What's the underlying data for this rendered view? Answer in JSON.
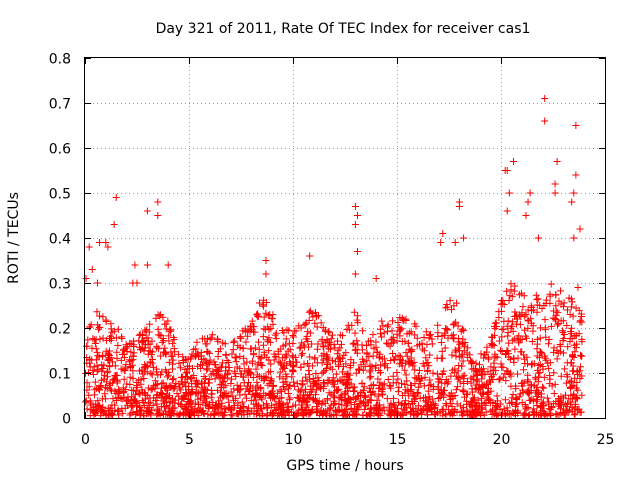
{
  "chart_data": {
    "type": "scatter",
    "title": "Day 321 of 2011, Rate Of TEC Index for receiver cas1",
    "xlabel": "GPS time / hours",
    "ylabel": "ROTI / TECUs",
    "xlim": [
      0,
      25
    ],
    "ylim": [
      0,
      0.8
    ],
    "x_ticks": [
      0,
      5,
      10,
      15,
      20,
      25
    ],
    "y_ticks": [
      0,
      0.1,
      0.2,
      0.3,
      0.4,
      0.5,
      0.6,
      0.7,
      0.8
    ],
    "grid": true,
    "marker": "+",
    "color": "#ff0000",
    "series": [
      {
        "points": [
          [
            0.05,
            0.31
          ],
          [
            0.1,
            0.02
          ],
          [
            0.2,
            0.38
          ],
          [
            0.35,
            0.33
          ],
          [
            0.6,
            0.3
          ],
          [
            0.7,
            0.39
          ],
          [
            1.0,
            0.39
          ],
          [
            1.1,
            0.38
          ],
          [
            1.4,
            0.43
          ],
          [
            1.5,
            0.49
          ],
          [
            2.3,
            0.3
          ],
          [
            2.4,
            0.34
          ],
          [
            2.5,
            0.3
          ],
          [
            3.0,
            0.34
          ],
          [
            3.0,
            0.46
          ],
          [
            3.5,
            0.48
          ],
          [
            3.5,
            0.45
          ],
          [
            4.0,
            0.34
          ],
          [
            8.7,
            0.35
          ],
          [
            8.7,
            0.32
          ],
          [
            10.8,
            0.36
          ],
          [
            13.0,
            0.47
          ],
          [
            13.1,
            0.45
          ],
          [
            13.0,
            0.43
          ],
          [
            13.1,
            0.37
          ],
          [
            13.0,
            0.32
          ],
          [
            14.0,
            0.31
          ],
          [
            17.2,
            0.41
          ],
          [
            17.1,
            0.39
          ],
          [
            17.8,
            0.39
          ],
          [
            18.0,
            0.47
          ],
          [
            18.0,
            0.48
          ],
          [
            18.2,
            0.4
          ],
          [
            20.3,
            0.46
          ],
          [
            20.4,
            0.5
          ],
          [
            20.2,
            0.55
          ],
          [
            20.3,
            0.55
          ],
          [
            20.6,
            0.57
          ],
          [
            21.4,
            0.5
          ],
          [
            21.3,
            0.48
          ],
          [
            21.2,
            0.45
          ],
          [
            21.8,
            0.4
          ],
          [
            22.1,
            0.71
          ],
          [
            22.1,
            0.66
          ],
          [
            22.6,
            0.52
          ],
          [
            22.7,
            0.57
          ],
          [
            22.6,
            0.5
          ],
          [
            23.4,
            0.48
          ],
          [
            23.5,
            0.5
          ],
          [
            23.6,
            0.54
          ],
          [
            23.6,
            0.65
          ],
          [
            23.8,
            0.42
          ],
          [
            23.5,
            0.4
          ],
          [
            23.7,
            0.29
          ]
        ]
      }
    ],
    "activity_envelope": [
      [
        0.0,
        0.2
      ],
      [
        0.5,
        0.24
      ],
      [
        1.0,
        0.22
      ],
      [
        1.5,
        0.21
      ],
      [
        2.0,
        0.16
      ],
      [
        2.5,
        0.18
      ],
      [
        3.0,
        0.2
      ],
      [
        3.5,
        0.24
      ],
      [
        4.0,
        0.22
      ],
      [
        4.5,
        0.14
      ],
      [
        5.0,
        0.13
      ],
      [
        5.5,
        0.18
      ],
      [
        6.0,
        0.19
      ],
      [
        6.5,
        0.17
      ],
      [
        7.0,
        0.16
      ],
      [
        7.5,
        0.19
      ],
      [
        8.0,
        0.21
      ],
      [
        8.5,
        0.27
      ],
      [
        9.0,
        0.24
      ],
      [
        9.5,
        0.2
      ],
      [
        10.0,
        0.19
      ],
      [
        10.5,
        0.22
      ],
      [
        11.0,
        0.25
      ],
      [
        11.5,
        0.2
      ],
      [
        12.0,
        0.18
      ],
      [
        12.5,
        0.19
      ],
      [
        13.0,
        0.24
      ],
      [
        13.5,
        0.18
      ],
      [
        14.0,
        0.21
      ],
      [
        14.5,
        0.22
      ],
      [
        15.0,
        0.24
      ],
      [
        15.5,
        0.23
      ],
      [
        16.0,
        0.2
      ],
      [
        16.5,
        0.19
      ],
      [
        17.0,
        0.22
      ],
      [
        17.5,
        0.27
      ],
      [
        18.0,
        0.25
      ],
      [
        18.5,
        0.14
      ],
      [
        19.0,
        0.14
      ],
      [
        19.5,
        0.17
      ],
      [
        20.0,
        0.26
      ],
      [
        20.5,
        0.3
      ],
      [
        21.0,
        0.28
      ],
      [
        21.5,
        0.3
      ],
      [
        22.0,
        0.24
      ],
      [
        22.5,
        0.32
      ],
      [
        23.0,
        0.28
      ],
      [
        23.5,
        0.26
      ],
      [
        24.0,
        0.22
      ]
    ]
  }
}
